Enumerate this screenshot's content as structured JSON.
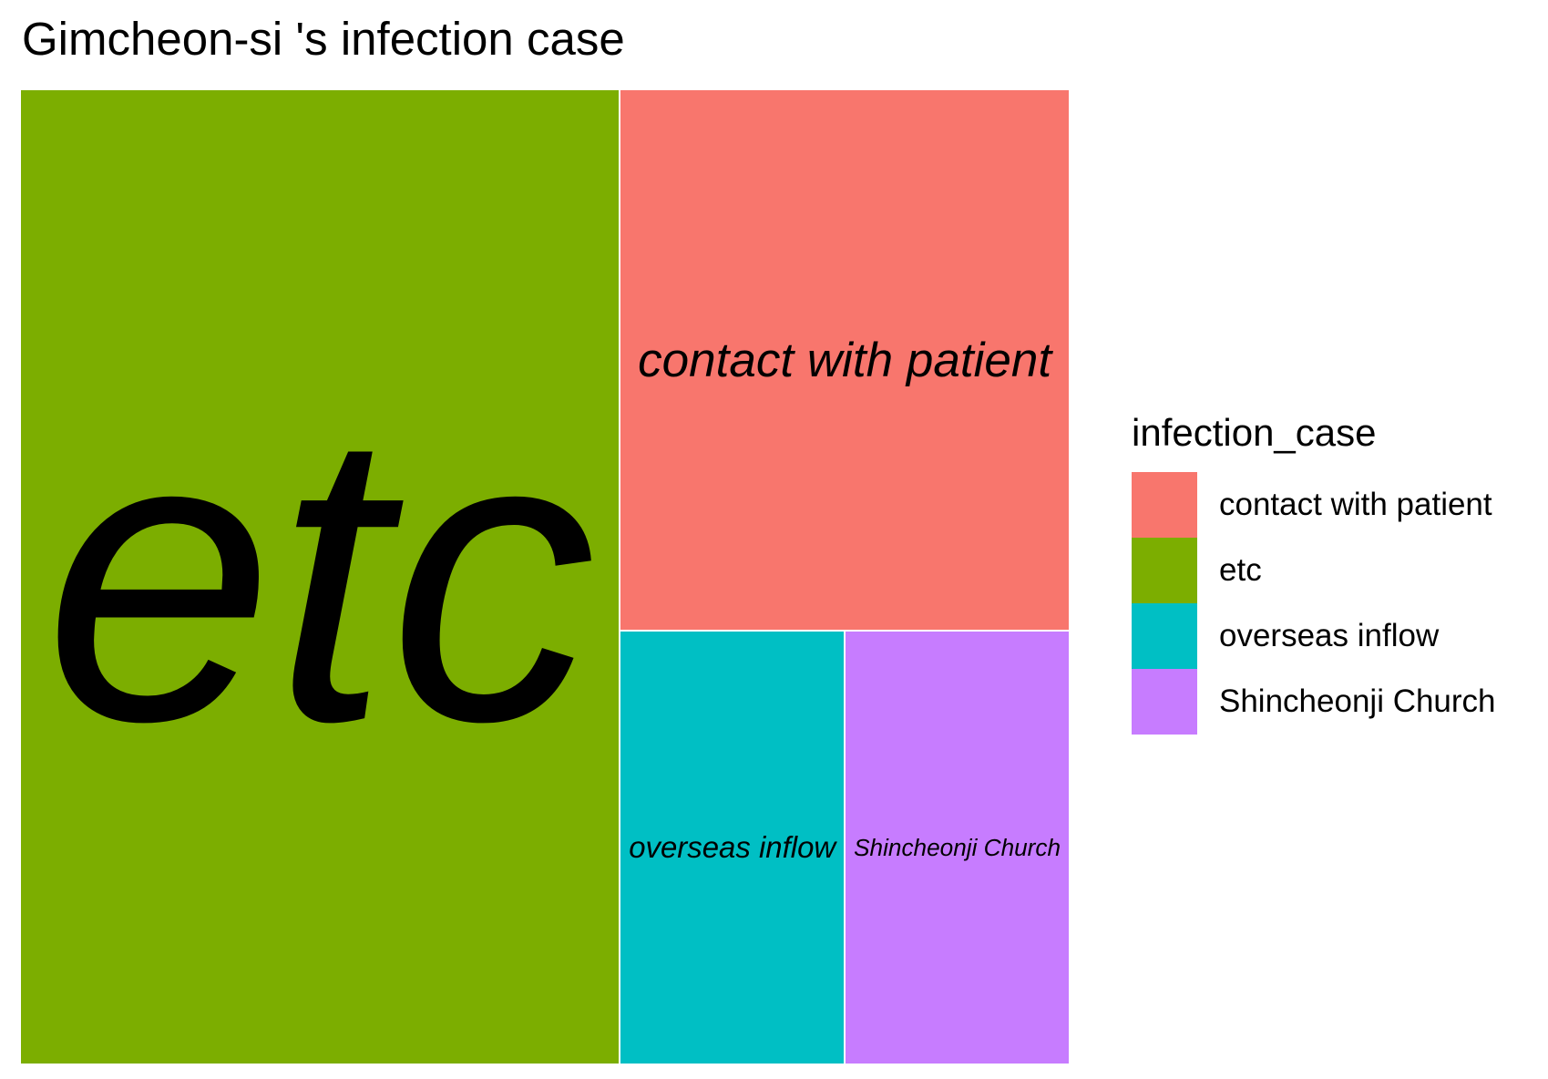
{
  "chart_data": {
    "type": "treemap",
    "title": "Gimcheon-si 's infection case",
    "legend_title": "infection_case",
    "legend_position": "right",
    "categories": [
      "contact with patient",
      "etc",
      "overseas inflow",
      "Shincheonji Church"
    ],
    "values": [
      10,
      24,
      4,
      4
    ],
    "colors": {
      "contact with patient": "#F8766D",
      "etc": "#7CAE00",
      "overseas inflow": "#00BFC4",
      "Shincheonji Church": "#C77CFF"
    }
  }
}
